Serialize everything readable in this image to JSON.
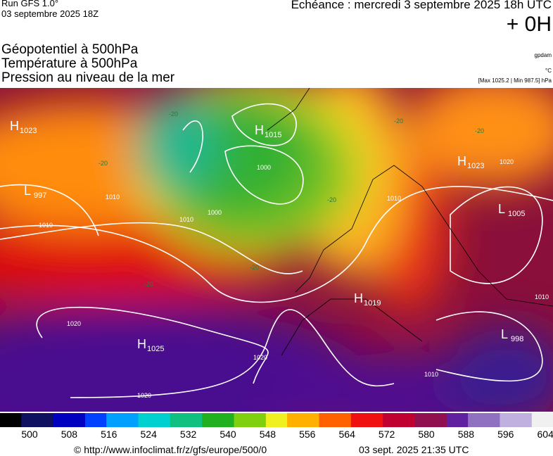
{
  "header": {
    "run": "Run GFS 1.0°",
    "run_date": "03 septembre 2025 18Z",
    "valid": "Echéance : mercredi 3 septembre 2025 18h UTC",
    "lead": "+ 0H",
    "titles": [
      "Géopotentiel à 500hPa",
      "Température à 500hPa",
      "Pression au niveau de la mer"
    ],
    "units": [
      "gpdam",
      "°C",
      "[Max 1025.2 | Min 987.5] hPa"
    ]
  },
  "map": {
    "centers": [
      {
        "kind": "H",
        "value": "1023"
      },
      {
        "kind": "L",
        "value": "997"
      },
      {
        "kind": "H",
        "value": "1015"
      },
      {
        "kind": "H",
        "value": "1023"
      },
      {
        "kind": "L",
        "value": "1005"
      },
      {
        "kind": "H",
        "value": "1019"
      },
      {
        "kind": "H",
        "value": "1025"
      },
      {
        "kind": "L",
        "value": "998"
      }
    ],
    "isobar_labels": [
      "1010",
      "1010",
      "1010",
      "1000",
      "1000",
      "1020",
      "1020",
      "1020",
      "1010",
      "1010",
      "1020",
      "1010"
    ],
    "temp_labels": [
      "-20",
      "-20",
      "-20",
      "-20",
      "-20",
      "-20",
      "-20"
    ]
  },
  "colorbar": {
    "ticks": [
      "500",
      "508",
      "516",
      "524",
      "532",
      "540",
      "548",
      "556",
      "564",
      "572",
      "580",
      "588",
      "596",
      "604"
    ]
  },
  "footer": {
    "url": "© http://www.infoclimat.fr/z/gfs/europe/500/0",
    "time": "03 sept. 2025 21:35 UTC"
  }
}
